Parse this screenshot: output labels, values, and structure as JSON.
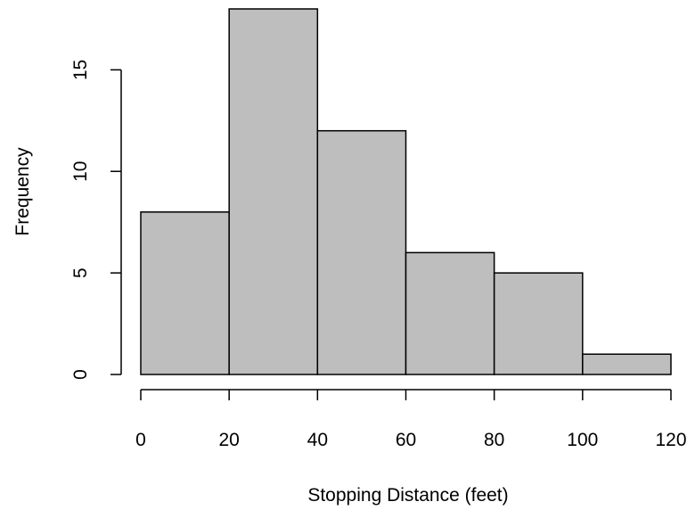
{
  "chart_data": {
    "type": "bar",
    "title": "",
    "xlabel": "Stopping Distance (feet)",
    "ylabel": "Frequency",
    "bins": [
      {
        "from": 0,
        "to": 20,
        "count": 8
      },
      {
        "from": 20,
        "to": 40,
        "count": 18
      },
      {
        "from": 40,
        "to": 60,
        "count": 12
      },
      {
        "from": 60,
        "to": 80,
        "count": 6
      },
      {
        "from": 80,
        "to": 100,
        "count": 5
      },
      {
        "from": 100,
        "to": 120,
        "count": 1
      }
    ],
    "xlim": [
      0,
      120
    ],
    "ylim": [
      0,
      18
    ],
    "x_ticks": [
      0,
      20,
      40,
      60,
      80,
      100,
      120
    ],
    "y_ticks": [
      0,
      5,
      10,
      15
    ],
    "bar_fill": "#bebebe",
    "bar_stroke": "#000000",
    "grid": false,
    "legend": "none"
  }
}
